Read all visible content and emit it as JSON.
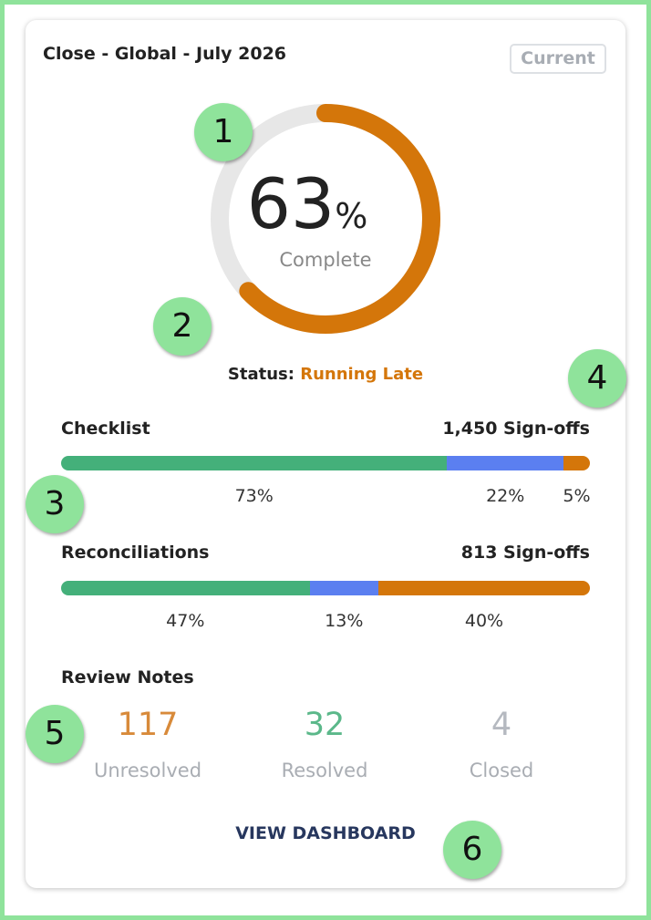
{
  "header": {
    "title": "Close - Global - July 2026",
    "badge": "Current"
  },
  "progress": {
    "value": 63,
    "unit": "%",
    "label": "Complete",
    "color": "#d4760a",
    "track_color": "#e7e7e7"
  },
  "status": {
    "label": "Status:",
    "value": "Running Late"
  },
  "checklist": {
    "label": "Checklist",
    "sign_offs": "1,450 Sign-offs",
    "segments": [
      {
        "value": 73,
        "label": "73%",
        "color": "#44b07a"
      },
      {
        "value": 22,
        "label": "22%",
        "color": "#5b7ff0"
      },
      {
        "value": 5,
        "label": "5%",
        "color": "#d4760a"
      }
    ]
  },
  "reconciliations": {
    "label": "Reconciliations",
    "sign_offs": "813 Sign-offs",
    "segments": [
      {
        "value": 47,
        "label": "47%",
        "color": "#44b07a"
      },
      {
        "value": 13,
        "label": "13%",
        "color": "#5b7ff0"
      },
      {
        "value": 40,
        "label": "40%",
        "color": "#d4760a"
      }
    ]
  },
  "review_notes": {
    "label": "Review Notes",
    "items": [
      {
        "count": 117,
        "label": "Unresolved",
        "color": "#d88a3a"
      },
      {
        "count": 32,
        "label": "Resolved",
        "color": "#5bb88a"
      },
      {
        "count": 4,
        "label": "Closed",
        "color": "#b5b9c0"
      }
    ]
  },
  "action": "VIEW DASHBOARD",
  "annotations": [
    "1",
    "2",
    "3",
    "4",
    "5",
    "6"
  ]
}
